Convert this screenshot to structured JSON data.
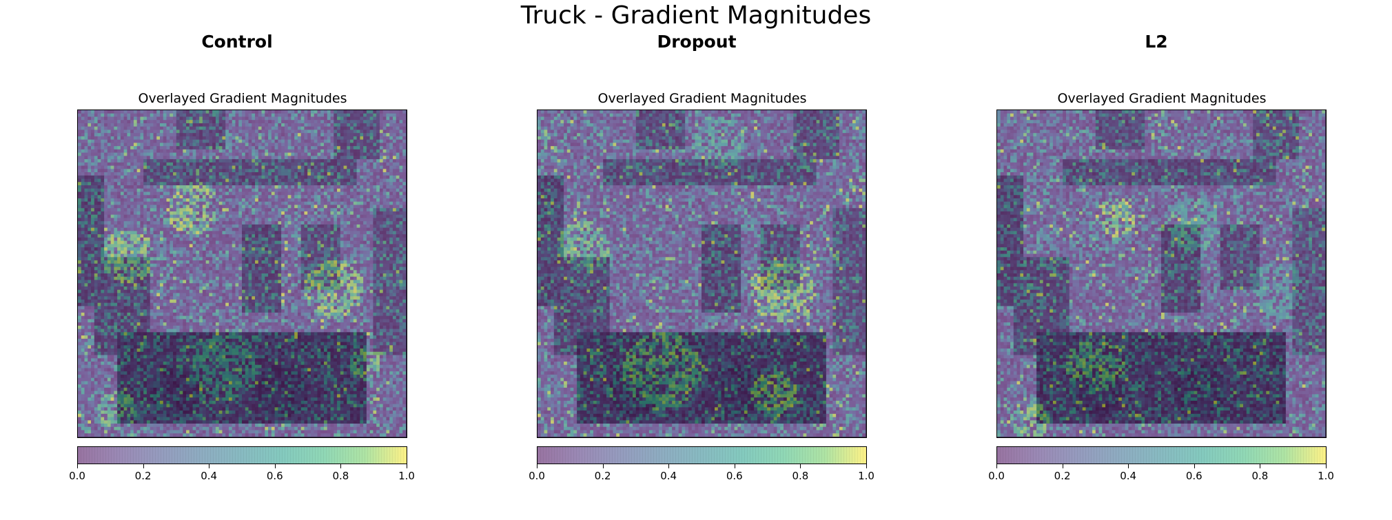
{
  "figure": {
    "title": "Truck - Gradient Magnitudes"
  },
  "colormap": "viridis",
  "panels": [
    {
      "title": "Control",
      "axes_title": "Overlayed Gradient Magnitudes",
      "colorbar_ticks": [
        "0.0",
        "0.2",
        "0.4",
        "0.6",
        "0.8",
        "1.0"
      ]
    },
    {
      "title": "Dropout",
      "axes_title": "Overlayed Gradient Magnitudes",
      "colorbar_ticks": [
        "0.0",
        "0.2",
        "0.4",
        "0.6",
        "0.8",
        "1.0"
      ]
    },
    {
      "title": "L2",
      "axes_title": "Overlayed Gradient Magnitudes",
      "colorbar_ticks": [
        "0.0",
        "0.2",
        "0.4",
        "0.6",
        "0.8",
        "1.0"
      ]
    }
  ],
  "chart_data": [
    {
      "type": "heatmap",
      "title": "Overlayed Gradient Magnitudes",
      "colorbar_range": [
        0.0,
        1.0
      ],
      "colorbar_ticks": [
        0.0,
        0.2,
        0.4,
        0.6,
        0.8,
        1.0
      ],
      "grid": false
    },
    {
      "type": "heatmap",
      "title": "Overlayed Gradient Magnitudes",
      "colorbar_range": [
        0.0,
        1.0
      ],
      "colorbar_ticks": [
        0.0,
        0.2,
        0.4,
        0.6,
        0.8,
        1.0
      ],
      "grid": false
    },
    {
      "type": "heatmap",
      "title": "Overlayed Gradient Magnitudes",
      "colorbar_range": [
        0.0,
        1.0
      ],
      "colorbar_ticks": [
        0.0,
        0.2,
        0.4,
        0.6,
        0.8,
        1.0
      ],
      "grid": false
    }
  ]
}
